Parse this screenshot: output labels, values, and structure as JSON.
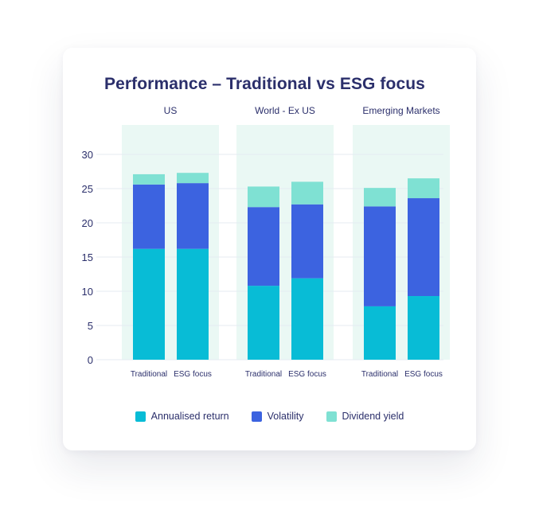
{
  "chart_data": {
    "type": "bar",
    "stacked": true,
    "title": "Performance – Traditional vs ESG focus",
    "xlabel": "",
    "ylabel": "",
    "ylim": [
      0,
      30
    ],
    "yticks": [
      0,
      5,
      10,
      15,
      20,
      25,
      30
    ],
    "grid": true,
    "legend_position": "bottom",
    "groups": [
      "US",
      "World - Ex US",
      "Emerging Markets"
    ],
    "categories": [
      "Traditional",
      "ESG focus"
    ],
    "series": [
      {
        "name": "Annualised return",
        "color": "#08bcd6",
        "values": [
          [
            16.2,
            16.2
          ],
          [
            10.8,
            11.9
          ],
          [
            7.8,
            9.3
          ]
        ]
      },
      {
        "name": "Volatility",
        "color": "#3c63e0",
        "values": [
          [
            9.4,
            9.6
          ],
          [
            11.5,
            10.8
          ],
          [
            14.6,
            14.3
          ]
        ]
      },
      {
        "name": "Dividend yield",
        "color": "#7fe1d3",
        "values": [
          [
            1.5,
            1.5
          ],
          [
            3.0,
            3.3
          ],
          [
            2.7,
            2.9
          ]
        ]
      }
    ]
  },
  "colors": {
    "title": "#2b2f6b",
    "group_band": "#eaf8f4",
    "gridline": "#e4ebf2"
  }
}
